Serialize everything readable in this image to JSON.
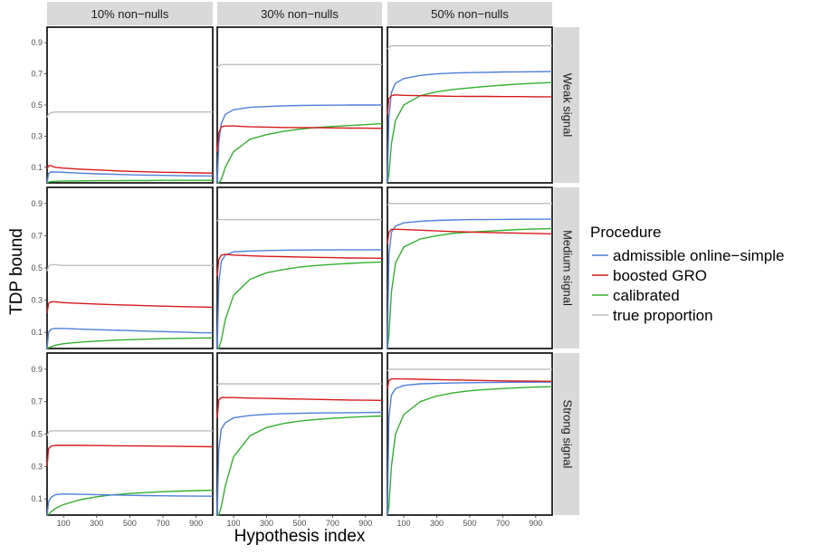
{
  "chart_data": {
    "type": "line",
    "xlabel": "Hypothesis index",
    "ylabel": "TDP bound",
    "xlim": [
      1,
      1000
    ],
    "ylim": [
      0,
      1
    ],
    "x_ticks": [
      100,
      300,
      500,
      700,
      900
    ],
    "y_ticks": [
      0.1,
      0.3,
      0.5,
      0.7,
      0.9
    ],
    "y_tick_labels": [
      "0.1",
      "0.3",
      "0.5",
      "0.7",
      "0.9"
    ],
    "columns": [
      "10% non−nulls",
      "30% non−nulls",
      "50% non−nulls"
    ],
    "rows": [
      "Weak signal",
      "Medium signal",
      "Strong signal"
    ],
    "legend": {
      "title": "Procedure",
      "position": "right",
      "entries": [
        {
          "name": "admissible online−simple",
          "color": "#4f7fd9"
        },
        {
          "name": "boosted GRO",
          "color": "#d7191c"
        },
        {
          "name": "calibrated",
          "color": "#33b02e"
        },
        {
          "name": "true proportion",
          "color": "#bdbdbd"
        }
      ]
    },
    "x": [
      1,
      10,
      25,
      50,
      100,
      200,
      300,
      400,
      500,
      600,
      700,
      800,
      900,
      1000
    ],
    "panels": [
      {
        "row": 0,
        "col": 0,
        "series": [
          {
            "name": "admissible online−simple",
            "values": [
              0.0,
              0.06,
              0.07,
              0.07,
              0.068,
              0.062,
              0.058,
              0.055,
              0.052,
              0.05,
              0.048,
              0.046,
              0.045,
              0.044
            ]
          },
          {
            "name": "boosted GRO",
            "values": [
              0.09,
              0.11,
              0.11,
              0.1,
              0.095,
              0.088,
              0.083,
              0.078,
              0.074,
              0.071,
              0.068,
              0.066,
              0.064,
              0.062
            ]
          },
          {
            "name": "calibrated",
            "values": [
              0.0,
              0.005,
              0.008,
              0.01,
              0.012,
              0.013,
              0.014,
              0.014,
              0.015,
              0.015,
              0.016,
              0.016,
              0.016,
              0.016
            ]
          },
          {
            "name": "true proportion",
            "values": [
              0.42,
              0.44,
              0.45,
              0.455,
              0.455,
              0.455,
              0.455,
              0.455,
              0.455,
              0.455,
              0.455,
              0.455,
              0.455,
              0.455
            ]
          }
        ]
      },
      {
        "row": 0,
        "col": 1,
        "series": [
          {
            "name": "admissible online−simple",
            "values": [
              0.0,
              0.25,
              0.38,
              0.44,
              0.47,
              0.485,
              0.49,
              0.495,
              0.497,
              0.498,
              0.499,
              0.5,
              0.5,
              0.5
            ]
          },
          {
            "name": "boosted GRO",
            "values": [
              0.2,
              0.32,
              0.36,
              0.365,
              0.365,
              0.36,
              0.358,
              0.356,
              0.355,
              0.354,
              0.353,
              0.352,
              0.351,
              0.35
            ]
          },
          {
            "name": "calibrated",
            "values": [
              0.0,
              0.0,
              0.02,
              0.1,
              0.2,
              0.28,
              0.31,
              0.33,
              0.345,
              0.355,
              0.362,
              0.368,
              0.374,
              0.38
            ]
          },
          {
            "name": "true proportion",
            "values": [
              0.74,
              0.75,
              0.76,
              0.76,
              0.76,
              0.76,
              0.76,
              0.76,
              0.76,
              0.76,
              0.76,
              0.76,
              0.76,
              0.76
            ]
          }
        ]
      },
      {
        "row": 0,
        "col": 2,
        "series": [
          {
            "name": "admissible online−simple",
            "values": [
              0.0,
              0.42,
              0.58,
              0.64,
              0.67,
              0.69,
              0.7,
              0.705,
              0.708,
              0.71,
              0.712,
              0.713,
              0.714,
              0.715
            ]
          },
          {
            "name": "boosted GRO",
            "values": [
              0.44,
              0.54,
              0.56,
              0.565,
              0.562,
              0.56,
              0.558,
              0.556,
              0.555,
              0.555,
              0.554,
              0.554,
              0.553,
              0.553
            ]
          },
          {
            "name": "calibrated",
            "values": [
              0.0,
              0.05,
              0.25,
              0.4,
              0.5,
              0.56,
              0.585,
              0.6,
              0.61,
              0.62,
              0.628,
              0.635,
              0.64,
              0.645
            ]
          },
          {
            "name": "true proportion",
            "values": [
              0.86,
              0.87,
              0.88,
              0.88,
              0.88,
              0.88,
              0.88,
              0.88,
              0.88,
              0.88,
              0.88,
              0.88,
              0.88,
              0.88
            ]
          }
        ]
      },
      {
        "row": 1,
        "col": 0,
        "series": [
          {
            "name": "admissible online−simple",
            "values": [
              0.0,
              0.1,
              0.12,
              0.125,
              0.125,
              0.12,
              0.117,
              0.114,
              0.111,
              0.108,
              0.105,
              0.102,
              0.099,
              0.097
            ]
          },
          {
            "name": "boosted GRO",
            "values": [
              0.22,
              0.28,
              0.29,
              0.29,
              0.285,
              0.28,
              0.276,
              0.272,
              0.269,
              0.266,
              0.263,
              0.26,
              0.258,
              0.256
            ]
          },
          {
            "name": "calibrated",
            "values": [
              0.0,
              0.005,
              0.01,
              0.02,
              0.03,
              0.04,
              0.046,
              0.051,
              0.055,
              0.058,
              0.061,
              0.063,
              0.065,
              0.066
            ]
          },
          {
            "name": "true proportion",
            "values": [
              0.48,
              0.51,
              0.52,
              0.52,
              0.515,
              0.515,
              0.515,
              0.515,
              0.515,
              0.515,
              0.515,
              0.515,
              0.515,
              0.515
            ]
          }
        ]
      },
      {
        "row": 1,
        "col": 1,
        "series": [
          {
            "name": "admissible online−simple",
            "values": [
              0.0,
              0.4,
              0.54,
              0.58,
              0.6,
              0.605,
              0.608,
              0.61,
              0.611,
              0.612,
              0.612,
              0.613,
              0.613,
              0.613
            ]
          },
          {
            "name": "boosted GRO",
            "values": [
              0.45,
              0.55,
              0.58,
              0.585,
              0.58,
              0.575,
              0.572,
              0.57,
              0.568,
              0.566,
              0.564,
              0.562,
              0.561,
              0.56
            ]
          },
          {
            "name": "calibrated",
            "values": [
              0.0,
              0.0,
              0.05,
              0.18,
              0.33,
              0.43,
              0.47,
              0.49,
              0.505,
              0.515,
              0.522,
              0.528,
              0.533,
              0.537
            ]
          },
          {
            "name": "true proportion",
            "values": [
              0.79,
              0.8,
              0.8,
              0.8,
              0.8,
              0.8,
              0.8,
              0.8,
              0.8,
              0.8,
              0.8,
              0.8,
              0.8,
              0.8
            ]
          }
        ]
      },
      {
        "row": 1,
        "col": 2,
        "series": [
          {
            "name": "admissible online−simple",
            "values": [
              0.0,
              0.58,
              0.72,
              0.76,
              0.78,
              0.79,
              0.795,
              0.798,
              0.8,
              0.8,
              0.801,
              0.802,
              0.802,
              0.803
            ]
          },
          {
            "name": "boosted GRO",
            "values": [
              0.65,
              0.72,
              0.74,
              0.74,
              0.738,
              0.734,
              0.73,
              0.726,
              0.723,
              0.72,
              0.718,
              0.716,
              0.714,
              0.712
            ]
          },
          {
            "name": "calibrated",
            "values": [
              0.0,
              0.08,
              0.35,
              0.53,
              0.63,
              0.68,
              0.7,
              0.715,
              0.722,
              0.728,
              0.733,
              0.738,
              0.742,
              0.745
            ]
          },
          {
            "name": "true proportion",
            "values": [
              0.89,
              0.9,
              0.9,
              0.9,
              0.9,
              0.9,
              0.9,
              0.9,
              0.9,
              0.9,
              0.9,
              0.9,
              0.9,
              0.9
            ]
          }
        ]
      },
      {
        "row": 2,
        "col": 0,
        "series": [
          {
            "name": "admissible online−simple",
            "values": [
              0.0,
              0.08,
              0.11,
              0.125,
              0.13,
              0.128,
              0.126,
              0.124,
              0.122,
              0.12,
              0.119,
              0.118,
              0.117,
              0.116
            ]
          },
          {
            "name": "boosted GRO",
            "values": [
              0.3,
              0.41,
              0.425,
              0.43,
              0.43,
              0.43,
              0.429,
              0.428,
              0.427,
              0.426,
              0.425,
              0.424,
              0.423,
              0.422
            ]
          },
          {
            "name": "calibrated",
            "values": [
              0.0,
              0.005,
              0.02,
              0.04,
              0.065,
              0.095,
              0.113,
              0.125,
              0.133,
              0.139,
              0.144,
              0.148,
              0.151,
              0.153
            ]
          },
          {
            "name": "true proportion",
            "values": [
              0.49,
              0.51,
              0.52,
              0.52,
              0.52,
              0.52,
              0.52,
              0.52,
              0.52,
              0.52,
              0.52,
              0.52,
              0.52,
              0.52
            ]
          }
        ]
      },
      {
        "row": 2,
        "col": 1,
        "series": [
          {
            "name": "admissible online−simple",
            "values": [
              0.0,
              0.4,
              0.53,
              0.57,
              0.6,
              0.615,
              0.622,
              0.626,
              0.628,
              0.63,
              0.631,
              0.632,
              0.633,
              0.634
            ]
          },
          {
            "name": "boosted GRO",
            "values": [
              0.6,
              0.71,
              0.725,
              0.725,
              0.725,
              0.722,
              0.72,
              0.718,
              0.716,
              0.714,
              0.712,
              0.71,
              0.709,
              0.708
            ]
          },
          {
            "name": "calibrated",
            "values": [
              0.0,
              0.0,
              0.05,
              0.18,
              0.36,
              0.49,
              0.54,
              0.565,
              0.58,
              0.59,
              0.597,
              0.603,
              0.608,
              0.612
            ]
          },
          {
            "name": "true proportion",
            "values": [
              0.8,
              0.81,
              0.81,
              0.81,
              0.81,
              0.81,
              0.81,
              0.81,
              0.81,
              0.81,
              0.81,
              0.81,
              0.81,
              0.81
            ]
          }
        ]
      },
      {
        "row": 2,
        "col": 2,
        "series": [
          {
            "name": "admissible online−simple",
            "values": [
              0.0,
              0.6,
              0.74,
              0.78,
              0.8,
              0.81,
              0.813,
              0.815,
              0.817,
              0.818,
              0.819,
              0.82,
              0.82,
              0.821
            ]
          },
          {
            "name": "boosted GRO",
            "values": [
              0.78,
              0.83,
              0.84,
              0.84,
              0.84,
              0.838,
              0.836,
              0.834,
              0.832,
              0.83,
              0.828,
              0.827,
              0.826,
              0.825
            ]
          },
          {
            "name": "calibrated",
            "values": [
              0.0,
              0.05,
              0.3,
              0.5,
              0.62,
              0.7,
              0.735,
              0.755,
              0.767,
              0.775,
              0.781,
              0.786,
              0.79,
              0.793
            ]
          },
          {
            "name": "true proportion",
            "values": [
              0.89,
              0.9,
              0.9,
              0.9,
              0.9,
              0.9,
              0.9,
              0.9,
              0.9,
              0.9,
              0.9,
              0.9,
              0.9,
              0.9
            ]
          }
        ]
      }
    ]
  }
}
